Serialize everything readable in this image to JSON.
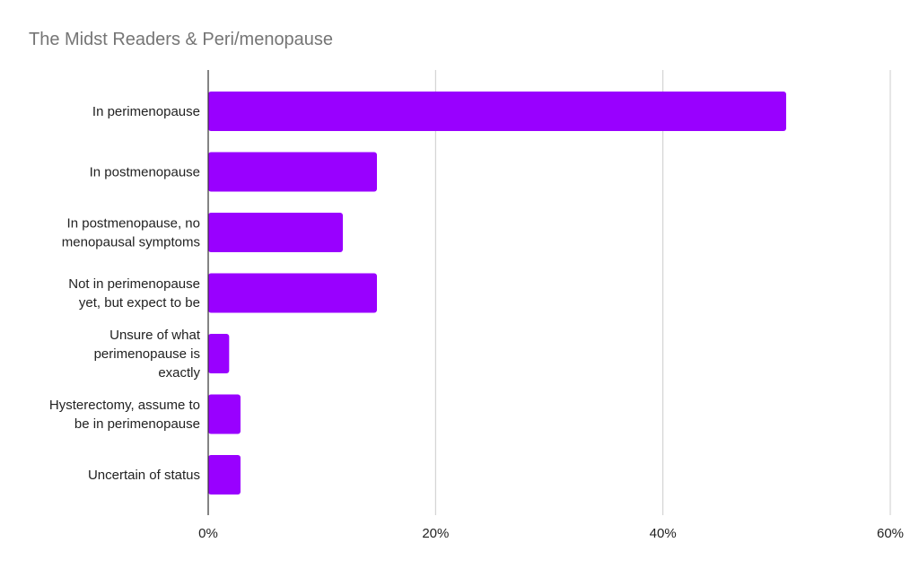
{
  "chart_data": {
    "type": "bar",
    "orientation": "horizontal",
    "title": "The Midst Readers & Peri/menopause",
    "xlabel": "",
    "ylabel": "",
    "categories": [
      [
        "In perimenopause"
      ],
      [
        "In postmenopause"
      ],
      [
        "In postmenopause, no",
        "menopausal symptoms"
      ],
      [
        "Not in perimenopause",
        "yet, but expect to be"
      ],
      [
        "Unsure of what",
        "perimenopause is",
        "exactly"
      ],
      [
        "Hysterectomy, assume to",
        "be in perimenopause"
      ],
      [
        "Uncertain of status"
      ]
    ],
    "values": [
      51,
      15,
      12,
      15,
      2,
      3,
      3
    ],
    "xlim": [
      0,
      60
    ],
    "x_ticks": [
      0,
      20,
      40,
      60
    ],
    "x_tick_labels": [
      "0%",
      "20%",
      "40%",
      "60%"
    ],
    "grid": "vertical",
    "legend": "none",
    "bar_color": "#9900ff",
    "grid_color": "#cccccc",
    "axis_color": "#333333",
    "title_color": "#757575"
  }
}
